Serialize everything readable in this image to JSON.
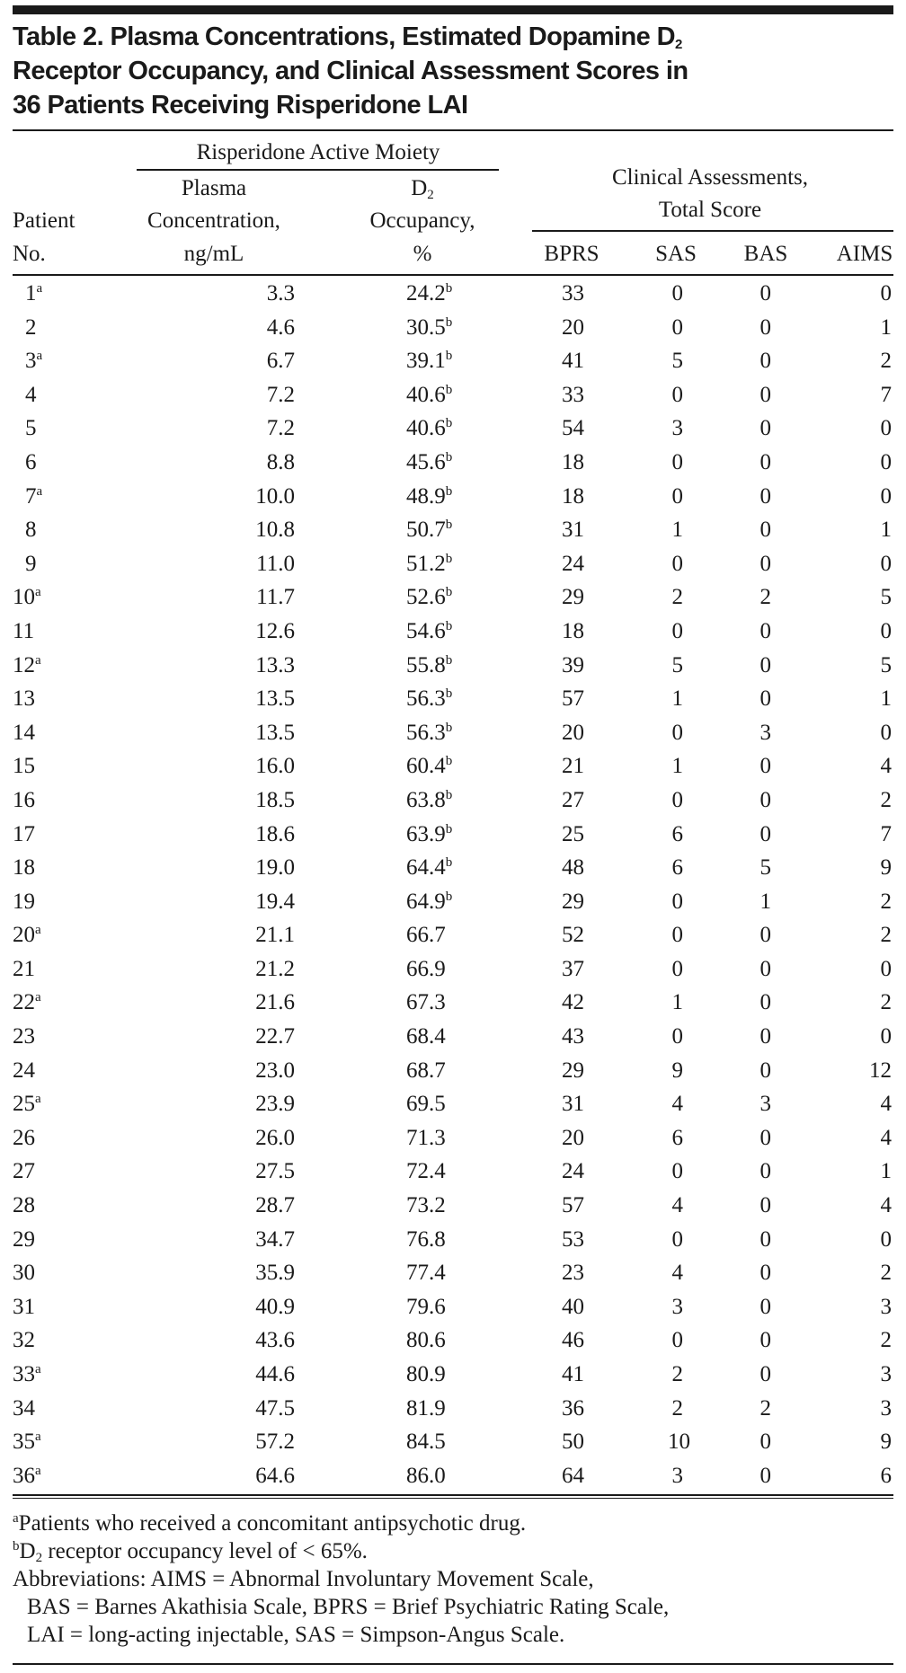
{
  "title": {
    "line1": "Table 2. Plasma Concentrations, Estimated Dopamine D",
    "line1_sub": "2",
    "line2": "Receptor Occupancy, and Clinical Assessment Scores in",
    "line3": "36 Patients Receiving Risperidone LAI"
  },
  "header": {
    "patient": [
      "Patient",
      "No."
    ],
    "group_risperidone": "Risperidone Active Moiety",
    "plasma": [
      "Plasma",
      "Concentration,",
      "ng/mL"
    ],
    "occupancy": {
      "d": "D",
      "sub": "2",
      "line2": "Occupancy,",
      "line3": "%"
    },
    "group_clinical": [
      "Clinical Assessments,",
      "Total Score"
    ],
    "bprs": "BPRS",
    "sas": "SAS",
    "bas": "BAS",
    "aims": "AIMS"
  },
  "rows": [
    {
      "no": "1",
      "a": true,
      "plasma": "3.3",
      "occ": "24.2",
      "b": true,
      "bprs": "33",
      "sas": "0",
      "bas": "0",
      "aims": "0"
    },
    {
      "no": "2",
      "a": false,
      "plasma": "4.6",
      "occ": "30.5",
      "b": true,
      "bprs": "20",
      "sas": "0",
      "bas": "0",
      "aims": "1"
    },
    {
      "no": "3",
      "a": true,
      "plasma": "6.7",
      "occ": "39.1",
      "b": true,
      "bprs": "41",
      "sas": "5",
      "bas": "0",
      "aims": "2"
    },
    {
      "no": "4",
      "a": false,
      "plasma": "7.2",
      "occ": "40.6",
      "b": true,
      "bprs": "33",
      "sas": "0",
      "bas": "0",
      "aims": "7"
    },
    {
      "no": "5",
      "a": false,
      "plasma": "7.2",
      "occ": "40.6",
      "b": true,
      "bprs": "54",
      "sas": "3",
      "bas": "0",
      "aims": "0"
    },
    {
      "no": "6",
      "a": false,
      "plasma": "8.8",
      "occ": "45.6",
      "b": true,
      "bprs": "18",
      "sas": "0",
      "bas": "0",
      "aims": "0"
    },
    {
      "no": "7",
      "a": true,
      "plasma": "10.0",
      "occ": "48.9",
      "b": true,
      "bprs": "18",
      "sas": "0",
      "bas": "0",
      "aims": "0"
    },
    {
      "no": "8",
      "a": false,
      "plasma": "10.8",
      "occ": "50.7",
      "b": true,
      "bprs": "31",
      "sas": "1",
      "bas": "0",
      "aims": "1"
    },
    {
      "no": "9",
      "a": false,
      "plasma": "11.0",
      "occ": "51.2",
      "b": true,
      "bprs": "24",
      "sas": "0",
      "bas": "0",
      "aims": "0"
    },
    {
      "no": "10",
      "a": true,
      "plasma": "11.7",
      "occ": "52.6",
      "b": true,
      "bprs": "29",
      "sas": "2",
      "bas": "2",
      "aims": "5"
    },
    {
      "no": "11",
      "a": false,
      "plasma": "12.6",
      "occ": "54.6",
      "b": true,
      "bprs": "18",
      "sas": "0",
      "bas": "0",
      "aims": "0"
    },
    {
      "no": "12",
      "a": true,
      "plasma": "13.3",
      "occ": "55.8",
      "b": true,
      "bprs": "39",
      "sas": "5",
      "bas": "0",
      "aims": "5"
    },
    {
      "no": "13",
      "a": false,
      "plasma": "13.5",
      "occ": "56.3",
      "b": true,
      "bprs": "57",
      "sas": "1",
      "bas": "0",
      "aims": "1"
    },
    {
      "no": "14",
      "a": false,
      "plasma": "13.5",
      "occ": "56.3",
      "b": true,
      "bprs": "20",
      "sas": "0",
      "bas": "3",
      "aims": "0"
    },
    {
      "no": "15",
      "a": false,
      "plasma": "16.0",
      "occ": "60.4",
      "b": true,
      "bprs": "21",
      "sas": "1",
      "bas": "0",
      "aims": "4"
    },
    {
      "no": "16",
      "a": false,
      "plasma": "18.5",
      "occ": "63.8",
      "b": true,
      "bprs": "27",
      "sas": "0",
      "bas": "0",
      "aims": "2"
    },
    {
      "no": "17",
      "a": false,
      "plasma": "18.6",
      "occ": "63.9",
      "b": true,
      "bprs": "25",
      "sas": "6",
      "bas": "0",
      "aims": "7"
    },
    {
      "no": "18",
      "a": false,
      "plasma": "19.0",
      "occ": "64.4",
      "b": true,
      "bprs": "48",
      "sas": "6",
      "bas": "5",
      "aims": "9"
    },
    {
      "no": "19",
      "a": false,
      "plasma": "19.4",
      "occ": "64.9",
      "b": true,
      "bprs": "29",
      "sas": "0",
      "bas": "1",
      "aims": "2"
    },
    {
      "no": "20",
      "a": true,
      "plasma": "21.1",
      "occ": "66.7",
      "b": false,
      "bprs": "52",
      "sas": "0",
      "bas": "0",
      "aims": "2"
    },
    {
      "no": "21",
      "a": false,
      "plasma": "21.2",
      "occ": "66.9",
      "b": false,
      "bprs": "37",
      "sas": "0",
      "bas": "0",
      "aims": "0"
    },
    {
      "no": "22",
      "a": true,
      "plasma": "21.6",
      "occ": "67.3",
      "b": false,
      "bprs": "42",
      "sas": "1",
      "bas": "0",
      "aims": "2"
    },
    {
      "no": "23",
      "a": false,
      "plasma": "22.7",
      "occ": "68.4",
      "b": false,
      "bprs": "43",
      "sas": "0",
      "bas": "0",
      "aims": "0"
    },
    {
      "no": "24",
      "a": false,
      "plasma": "23.0",
      "occ": "68.7",
      "b": false,
      "bprs": "29",
      "sas": "9",
      "bas": "0",
      "aims": "12"
    },
    {
      "no": "25",
      "a": true,
      "plasma": "23.9",
      "occ": "69.5",
      "b": false,
      "bprs": "31",
      "sas": "4",
      "bas": "3",
      "aims": "4"
    },
    {
      "no": "26",
      "a": false,
      "plasma": "26.0",
      "occ": "71.3",
      "b": false,
      "bprs": "20",
      "sas": "6",
      "bas": "0",
      "aims": "4"
    },
    {
      "no": "27",
      "a": false,
      "plasma": "27.5",
      "occ": "72.4",
      "b": false,
      "bprs": "24",
      "sas": "0",
      "bas": "0",
      "aims": "1"
    },
    {
      "no": "28",
      "a": false,
      "plasma": "28.7",
      "occ": "73.2",
      "b": false,
      "bprs": "57",
      "sas": "4",
      "bas": "0",
      "aims": "4"
    },
    {
      "no": "29",
      "a": false,
      "plasma": "34.7",
      "occ": "76.8",
      "b": false,
      "bprs": "53",
      "sas": "0",
      "bas": "0",
      "aims": "0"
    },
    {
      "no": "30",
      "a": false,
      "plasma": "35.9",
      "occ": "77.4",
      "b": false,
      "bprs": "23",
      "sas": "4",
      "bas": "0",
      "aims": "2"
    },
    {
      "no": "31",
      "a": false,
      "plasma": "40.9",
      "occ": "79.6",
      "b": false,
      "bprs": "40",
      "sas": "3",
      "bas": "0",
      "aims": "3"
    },
    {
      "no": "32",
      "a": false,
      "plasma": "43.6",
      "occ": "80.6",
      "b": false,
      "bprs": "46",
      "sas": "0",
      "bas": "0",
      "aims": "2"
    },
    {
      "no": "33",
      "a": true,
      "plasma": "44.6",
      "occ": "80.9",
      "b": false,
      "bprs": "41",
      "sas": "2",
      "bas": "0",
      "aims": "3"
    },
    {
      "no": "34",
      "a": false,
      "plasma": "47.5",
      "occ": "81.9",
      "b": false,
      "bprs": "36",
      "sas": "2",
      "bas": "2",
      "aims": "3"
    },
    {
      "no": "35",
      "a": true,
      "plasma": "57.2",
      "occ": "84.5",
      "b": false,
      "bprs": "50",
      "sas": "10",
      "bas": "0",
      "aims": "9"
    },
    {
      "no": "36",
      "a": true,
      "plasma": "64.6",
      "occ": "86.0",
      "b": false,
      "bprs": "64",
      "sas": "3",
      "bas": "0",
      "aims": "6"
    }
  ],
  "footnote_marks": {
    "a": "a",
    "b": "b"
  },
  "footnotes": {
    "a": "Patients who received a concomitant antipsychotic drug.",
    "b_pre": "D",
    "b_sub": "2",
    "b_text": " receptor occupancy level of < 65%.",
    "abbrev": [
      "Abbreviations: AIMS = Abnormal Involuntary Movement Scale,",
      "BAS = Barnes Akathisia Scale, BPRS = Brief Psychiatric Rating Scale,",
      "LAI = long-acting injectable, SAS = Simpson-Angus Scale."
    ]
  }
}
